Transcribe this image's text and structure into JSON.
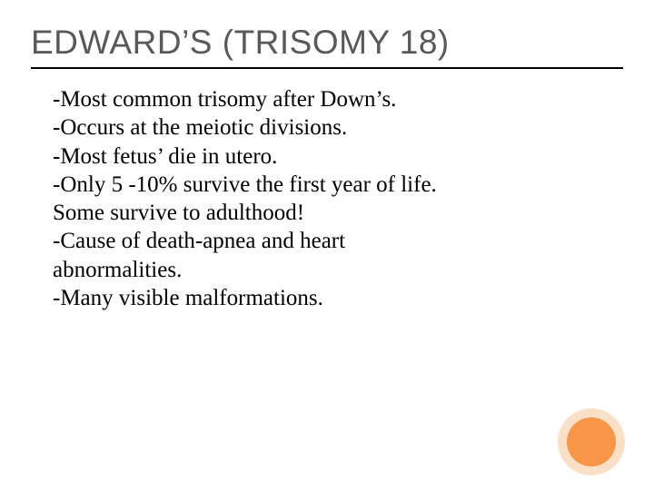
{
  "slide": {
    "title": "EDWARD’S (TRISOMY 18)",
    "title_color": "#595959",
    "title_fontsize": 37,
    "underline_color": "#000000",
    "body_lines": [
      "-Most common trisomy after Down’s.",
      "-Occurs at the meiotic divisions.",
      "-Most fetus’ die in utero.",
      "-Only 5 -10% survive the first year of life.",
      "Some survive to adulthood!",
      "-Cause of death-apnea and heart",
      "abnormalities.",
      "-Many visible malformations."
    ],
    "body_fontsize": 25,
    "body_color": "#000000",
    "background_color": "#ffffff",
    "accent_outer_color": "#fbe0c8",
    "accent_inner_color": "#f79646"
  }
}
